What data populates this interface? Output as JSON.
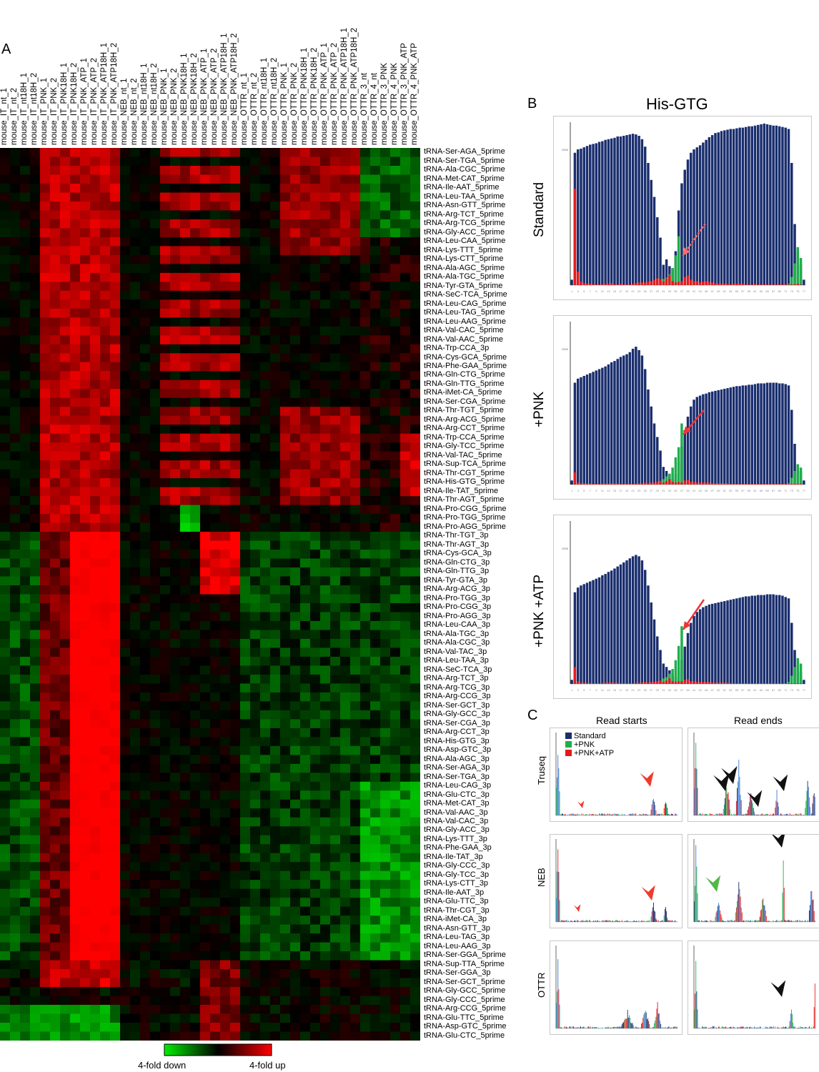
{
  "panels": {
    "A": "A",
    "B": "B",
    "C": "C"
  },
  "colors": {
    "up": "#ff0000",
    "down": "#00ee00",
    "neutral": "#000000",
    "standard": "#1a2e6e",
    "pnk": "#1fae4b",
    "pnk_atp": "#e31a1c"
  },
  "chart_data": [
    {
      "type": "heatmap",
      "columns": [
        "mouse_IT_nt_1",
        "mouse_IT_nt_2",
        "mouse_IT_nt18H_1",
        "mouse_IT_nt18H_2",
        "mouse_IT_PNK_1",
        "mouse_IT_PNK_2",
        "mouse_IT_PNK18H_1",
        "mouse_IT_PNK18H_2",
        "mouse_IT_PNK_ATP_1",
        "mouse_IT_PNK_ATP_2",
        "mouse_IT_PNK_ATP18H_1",
        "mouse_IT_PNK_ATP18H_2",
        "mouse_NEB_nt_1",
        "mouse_NEB_nt_2",
        "mouse_NEB_nt18H_1",
        "mouse_NEB_nt18H_2",
        "mouse_NEB_PNK_1",
        "mouse_NEB_PNK_2",
        "mouse_NEB_PNK18H_1",
        "mouse_NEB_PNK18H_2",
        "mouse_NEB_PNK_ATP_1",
        "mouse_NEB_PNK_ATP_2",
        "mouse_NEB_PNK_ATP18H_1",
        "mouse_NEB_PNK_ATP18H_2",
        "mouse_OTTR_nt_1",
        "mouse_OTTR_nt_2",
        "mouse_OTTR_nt18H_1",
        "mouse_OTTR_nt18H_2",
        "mouse_OTTR_PNK_1",
        "mouse_OTTR_PNK_2",
        "mouse_OTTR_PNK18H_1",
        "mouse_OTTR_PNK18H_2",
        "mouse_OTTR_PNK_ATP_1",
        "mouse_OTTR_PNK_ATP_2",
        "mouse_OTTR_PNK_ATP18H_1",
        "mouse_OTTR_PNK_ATP18H_2",
        "mouse_OTTR_3_nt",
        "mouse_OTTR_4_nt",
        "mouse_OTTR_3_PNK",
        "mouse_OTTR_4_PNK",
        "mouse_OTTR_3_PNK_ATP",
        "mouse_OTTR_4_PNK_ATP"
      ],
      "rows": [
        "tRNA-Ser-AGA_5prime",
        "tRNA-Ser-TGA_5prime",
        "tRNA-Ala-CGC_5prime",
        "tRNA-Met-CAT_5prime",
        "tRNA-Ile-AAT_5prime",
        "tRNA-Leu-TAA_5prime",
        "tRNA-Asn-GTT_5prime",
        "tRNA-Arg-TCT_5prime",
        "tRNA-Arg-TCG_5prime",
        "tRNA-Gly-ACC_5prime",
        "tRNA-Leu-CAA_5prime",
        "tRNA-Lys-TTT_5prime",
        "tRNA-Lys-CTT_5prime",
        "tRNA-Ala-AGC_5prime",
        "tRNA-Ala-TGC_5prime",
        "tRNA-Tyr-GTA_5prime",
        "tRNA-SeC-TCA_5prime",
        "tRNA-Leu-CAG_5prime",
        "tRNA-Leu-TAG_5prime",
        "tRNA-Leu-AAG_5prime",
        "tRNA-Val-CAC_5prime",
        "tRNA-Val-AAC_5prime",
        "tRNA-Trp-CCA_3p",
        "tRNA-Cys-GCA_5prime",
        "tRNA-Phe-GAA_5prime",
        "tRNA-Gln-CTG_5prime",
        "tRNA-Gln-TTG_5prime",
        "tRNA-iMet-CA_5prime",
        "tRNA-Ser-CGA_5prime",
        "tRNA-Thr-TGT_5prime",
        "tRNA-Arg-ACG_5prime",
        "tRNA-Arg-CCT_5prime",
        "tRNA-Trp-CCA_5prime",
        "tRNA-Gly-TCC_5prime",
        "tRNA-Val-TAC_5prime",
        "tRNA-Sup-TCA_5prime",
        "tRNA-Thr-CGT_5prime",
        "tRNA-His-GTG_5prime",
        "tRNA-Ile-TAT_5prime",
        "tRNA-Thr-AGT_5prime",
        "tRNA-Pro-CGG_5prime",
        "tRNA-Pro-TGG_5prime",
        "tRNA-Pro-AGG_5prime",
        "tRNA-Thr-TGT_3p",
        "tRNA-Thr-AGT_3p",
        "tRNA-Cys-GCA_3p",
        "tRNA-Gln-CTG_3p",
        "tRNA-Gln-TTG_3p",
        "tRNA-Tyr-GTA_3p",
        "tRNA-Arg-ACG_3p",
        "tRNA-Pro-TGG_3p",
        "tRNA-Pro-CGG_3p",
        "tRNA-Pro-AGG_3p",
        "tRNA-Leu-CAA_3p",
        "tRNA-Ala-TGC_3p",
        "tRNA-Ala-CGC_3p",
        "tRNA-Val-TAC_3p",
        "tRNA-Leu-TAA_3p",
        "tRNA-SeC-TCA_3p",
        "tRNA-Arg-TCT_3p",
        "tRNA-Arg-TCG_3p",
        "tRNA-Arg-CCG_3p",
        "tRNA-Ser-GCT_3p",
        "tRNA-Gly-GCC_3p",
        "tRNA-Ser-CGA_3p",
        "tRNA-Arg-CCT_3p",
        "tRNA-His-GTG_3p",
        "tRNA-Asp-GTC_3p",
        "tRNA-Ala-AGC_3p",
        "tRNA-Ser-AGA_3p",
        "tRNA-Ser-TGA_3p",
        "tRNA-Leu-CAG_3p",
        "tRNA-Glu-CTC_3p",
        "tRNA-Met-CAT_3p",
        "tRNA-Val-AAC_3p",
        "tRNA-Val-CAC_3p",
        "tRNA-Gly-ACC_3p",
        "tRNA-Lys-TTT_3p",
        "tRNA-Phe-GAA_3p",
        "tRNA-Ile-TAT_3p",
        "tRNA-Gly-CCC_3p",
        "tRNA-Gly-TCC_3p",
        "tRNA-Lys-CTT_3p",
        "tRNA-Ile-AAT_3p",
        "tRNA-Glu-TTC_3p",
        "tRNA-Thr-CGT_3p",
        "tRNA-iMet-CA_3p",
        "tRNA-Asn-GTT_3p",
        "tRNA-Leu-TAG_3p",
        "tRNA-Leu-AAG_3p",
        "tRNA-Ser-GGA_5prime",
        "tRNA-Sup-TTA_5prime",
        "tRNA-Ser-GGA_3p",
        "tRNA-Ser-GCT_5prime",
        "tRNA-Gly-GCC_5prime",
        "tRNA-Gly-CCC_5prime",
        "tRNA-Arg-CCG_5prime",
        "tRNA-Glu-TTC_5prime",
        "tRNA-Asp-GTC_5prime",
        "tRNA-Glu-CTC_5prime"
      ],
      "scale_range": [
        -2,
        2
      ],
      "legend": {
        "low_label": "4-fold down",
        "high_label": "4-fold up"
      }
    },
    {
      "type": "bar",
      "title": "His-GTG",
      "x_tick_labels": [
        "1",
        "3",
        "5",
        "7",
        "9",
        "11",
        "13",
        "15",
        "17",
        "19",
        "21",
        "23",
        "25",
        "27",
        "29",
        "31",
        "33",
        "35",
        "37",
        "39",
        "41",
        "43",
        "45",
        "47",
        "49",
        "51",
        "53",
        "55",
        "57",
        "59",
        "61",
        "63",
        "65",
        "67",
        "69",
        "71",
        "73",
        "75",
        "77"
      ],
      "y_tick": 2000,
      "ylim": [
        0,
        2400
      ],
      "subplots": [
        {
          "label": "Standard",
          "blue": [
            80,
            1950,
            2000,
            2010,
            2030,
            2050,
            2070,
            2080,
            2090,
            2110,
            2120,
            2140,
            2150,
            2160,
            2170,
            2190,
            2190,
            2200,
            2210,
            2220,
            2230,
            2220,
            2200,
            2150,
            2040,
            1800,
            1550,
            1300,
            1000,
            700,
            300,
            380,
            280,
            250,
            500,
            1100,
            1500,
            1700,
            1850,
            1950,
            2000,
            2030,
            2060,
            2100,
            2140,
            2180,
            2210,
            2240,
            2250,
            2270,
            2280,
            2290,
            2300,
            2300,
            2310,
            2320,
            2320,
            2330,
            2340,
            2340,
            2350,
            2360,
            2370,
            2380,
            2370,
            2360,
            2350,
            2350,
            2340,
            2330,
            2320,
            2300,
            1800,
            900,
            500,
            300,
            80
          ],
          "green": [
            0,
            0,
            0,
            0,
            0,
            0,
            0,
            0,
            0,
            0,
            0,
            0,
            0,
            0,
            0,
            0,
            0,
            0,
            0,
            0,
            0,
            0,
            0,
            0,
            0,
            0,
            10,
            20,
            30,
            40,
            90,
            110,
            160,
            250,
            440,
            720,
            0,
            0,
            0,
            0,
            0,
            0,
            0,
            0,
            0,
            0,
            0,
            0,
            0,
            0,
            0,
            0,
            0,
            0,
            0,
            0,
            0,
            0,
            0,
            0,
            0,
            0,
            0,
            0,
            0,
            0,
            0,
            0,
            0,
            0,
            10,
            20,
            120,
            320,
            560,
            400,
            0
          ],
          "red": [
            0,
            1420,
            200,
            50,
            30,
            20,
            20,
            15,
            10,
            10,
            15,
            20,
            20,
            30,
            10,
            10,
            20,
            10,
            10,
            10,
            20,
            30,
            40,
            40,
            40,
            50,
            60,
            80,
            100,
            90,
            60,
            100,
            150,
            60,
            40,
            50,
            60,
            120,
            140,
            80,
            60,
            60,
            40,
            50,
            60,
            50,
            40,
            30,
            20,
            20,
            20,
            20,
            10,
            20,
            20,
            20,
            20,
            10,
            10,
            10,
            20,
            10,
            10,
            10,
            10,
            10,
            10,
            10,
            10,
            10,
            10,
            10,
            10,
            10,
            20,
            10,
            0
          ]
        },
        {
          "label": "+PNK",
          "blue": [
            60,
            1500,
            1560,
            1580,
            1600,
            1620,
            1640,
            1660,
            1680,
            1700,
            1720,
            1740,
            1770,
            1800,
            1820,
            1850,
            1880,
            1900,
            1920,
            1950,
            2000,
            2030,
            1980,
            1900,
            1700,
            1400,
            1150,
            900,
            700,
            500,
            260,
            200,
            150,
            80,
            150,
            330,
            560,
            800,
            1000,
            1150,
            1250,
            1290,
            1310,
            1330,
            1340,
            1360,
            1370,
            1380,
            1390,
            1400,
            1410,
            1420,
            1430,
            1440,
            1450,
            1450,
            1460,
            1460,
            1470,
            1470,
            1480,
            1490,
            1490,
            1490,
            1500,
            1500,
            1500,
            1500,
            1490,
            1490,
            1480,
            1460,
            1100,
            600,
            300,
            200,
            60
          ],
          "green": [
            0,
            0,
            0,
            0,
            0,
            0,
            0,
            0,
            0,
            0,
            0,
            0,
            0,
            0,
            0,
            0,
            0,
            0,
            0,
            0,
            0,
            0,
            0,
            0,
            0,
            0,
            10,
            20,
            30,
            50,
            80,
            120,
            160,
            250,
            400,
            550,
            900,
            0,
            0,
            0,
            0,
            0,
            0,
            0,
            0,
            0,
            0,
            0,
            0,
            0,
            0,
            0,
            0,
            0,
            0,
            0,
            0,
            0,
            0,
            0,
            0,
            0,
            0,
            0,
            0,
            0,
            0,
            0,
            0,
            0,
            10,
            20,
            100,
            200,
            300,
            250,
            0
          ],
          "red": [
            0,
            180,
            30,
            20,
            20,
            15,
            15,
            10,
            10,
            10,
            15,
            15,
            15,
            20,
            20,
            15,
            10,
            10,
            10,
            10,
            10,
            15,
            20,
            20,
            30,
            20,
            30,
            30,
            40,
            40,
            30,
            50,
            80,
            40,
            30,
            40,
            30,
            60,
            70,
            40,
            40,
            30,
            30,
            30,
            30,
            30,
            20,
            20,
            20,
            20,
            20,
            20,
            10,
            10,
            10,
            10,
            10,
            10,
            10,
            10,
            10,
            10,
            10,
            10,
            10,
            10,
            10,
            10,
            10,
            10,
            10,
            10,
            10,
            10,
            10,
            10,
            0
          ]
        },
        {
          "label": "+PNK +ATP",
          "blue": [
            60,
            1350,
            1420,
            1450,
            1470,
            1490,
            1510,
            1530,
            1550,
            1570,
            1600,
            1620,
            1650,
            1670,
            1700,
            1730,
            1760,
            1790,
            1820,
            1850,
            1880,
            1900,
            1880,
            1820,
            1680,
            1450,
            1200,
            950,
            700,
            500,
            300,
            250,
            200,
            150,
            100,
            200,
            350,
            550,
            750,
            900,
            1000,
            1060,
            1100,
            1130,
            1150,
            1170,
            1180,
            1190,
            1200,
            1210,
            1220,
            1230,
            1240,
            1250,
            1260,
            1270,
            1280,
            1290,
            1290,
            1300,
            1300,
            1310,
            1310,
            1310,
            1320,
            1320,
            1320,
            1310,
            1310,
            1300,
            1280,
            1260,
            900,
            500,
            280,
            180,
            60
          ],
          "green": [
            0,
            0,
            0,
            0,
            0,
            0,
            0,
            0,
            0,
            0,
            0,
            0,
            0,
            0,
            0,
            0,
            0,
            0,
            0,
            0,
            0,
            0,
            0,
            0,
            0,
            0,
            10,
            20,
            30,
            50,
            80,
            100,
            150,
            220,
            350,
            560,
            850,
            0,
            0,
            0,
            0,
            0,
            0,
            0,
            0,
            0,
            0,
            0,
            0,
            0,
            0,
            0,
            0,
            0,
            0,
            0,
            0,
            0,
            0,
            0,
            0,
            0,
            0,
            0,
            0,
            0,
            0,
            0,
            0,
            0,
            10,
            30,
            120,
            250,
            380,
            300,
            0
          ],
          "red": [
            0,
            250,
            40,
            20,
            20,
            15,
            15,
            10,
            10,
            10,
            15,
            20,
            20,
            20,
            20,
            15,
            10,
            10,
            10,
            10,
            10,
            15,
            20,
            20,
            30,
            20,
            30,
            30,
            40,
            50,
            30,
            50,
            80,
            40,
            30,
            40,
            40,
            60,
            70,
            40,
            40,
            30,
            30,
            30,
            30,
            30,
            20,
            20,
            20,
            20,
            20,
            20,
            10,
            10,
            10,
            10,
            10,
            10,
            10,
            10,
            10,
            10,
            10,
            10,
            10,
            10,
            10,
            10,
            10,
            10,
            10,
            10,
            10,
            10,
            10,
            10,
            0
          ]
        }
      ]
    },
    {
      "type": "bar",
      "columns": [
        "Read starts",
        "Read ends"
      ],
      "rows": [
        "Truseq",
        "NEB",
        "OTTR"
      ],
      "legend": [
        "Standard",
        "+PNK",
        "+PNK+ATP"
      ]
    }
  ]
}
